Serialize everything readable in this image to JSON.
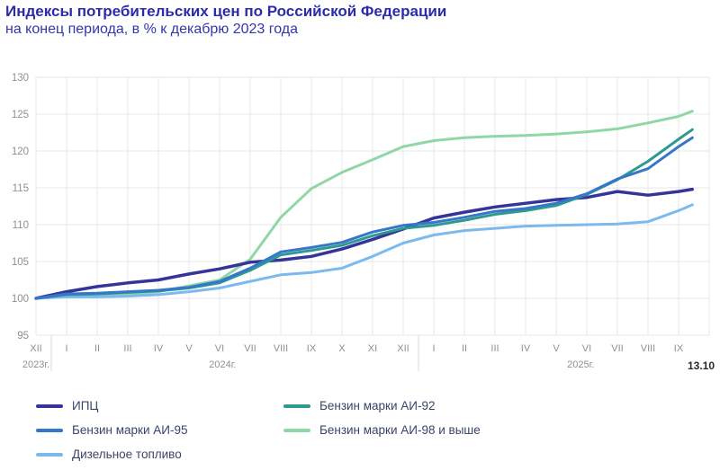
{
  "header": {
    "title": "Индексы потребительских цен по Российской Федерации",
    "subtitle": "на конец периода, в % к декабрю 2023 года"
  },
  "annotation": {
    "date_label": "13.10"
  },
  "colors": {
    "title": "#2c2caa",
    "grid": "#e7e7e7",
    "tick_text": "#8f8f8f",
    "date_label_text": "#2b2b2b"
  },
  "chart_data": {
    "type": "line",
    "title": "Индексы потребительских цен по Российской Федерации",
    "subtitle": "на конец периода, в % к декабрю 2023 года",
    "ylim": [
      95,
      130
    ],
    "y_ticks": [
      95,
      100,
      105,
      110,
      115,
      120,
      125,
      130
    ],
    "grid": true,
    "legend_position": "bottom",
    "x_tick_labels": [
      "XII",
      "I",
      "II",
      "III",
      "IV",
      "V",
      "VI",
      "VII",
      "VIII",
      "IX",
      "X",
      "XI",
      "XII",
      "I",
      "II",
      "III",
      "IV",
      "V",
      "VI",
      "VII",
      "VIII",
      "IX"
    ],
    "year_labels": [
      {
        "label": "2023г.",
        "month_index": 0
      },
      {
        "label": "2024г.",
        "month_index": 6.1
      },
      {
        "label": "2025г.",
        "month_index": 17.8
      }
    ],
    "year_separator_indices": [
      0.5,
      12.5
    ],
    "last_point_month_index": 21.45,
    "last_point_note": "13.10",
    "series": [
      {
        "name": "ИПЦ",
        "color": "#34349a",
        "width": 3.5,
        "values": [
          100,
          100.9,
          101.6,
          102.1,
          102.5,
          103.3,
          104.0,
          104.9,
          105.2,
          105.7,
          106.7,
          108.0,
          109.4,
          110.9,
          111.7,
          112.4,
          112.9,
          113.4,
          113.7,
          114.5,
          114.0,
          114.5,
          114.8
        ]
      },
      {
        "name": "Бензин марки АИ-95",
        "color": "#3577c9",
        "width": 3,
        "values": [
          100,
          100.6,
          100.7,
          100.9,
          101.1,
          101.5,
          102.3,
          104.1,
          106.3,
          106.9,
          107.6,
          109.0,
          109.9,
          110.3,
          111.0,
          111.8,
          112.2,
          112.9,
          114.2,
          116.2,
          117.6,
          120.6,
          121.8
        ]
      },
      {
        "name": "Дизельное топливо",
        "color": "#7cb9ec",
        "width": 3,
        "values": [
          100,
          100.2,
          100.2,
          100.3,
          100.5,
          100.9,
          101.4,
          102.3,
          103.2,
          103.5,
          104.1,
          105.7,
          107.5,
          108.6,
          109.2,
          109.5,
          109.8,
          109.9,
          110.0,
          110.1,
          110.4,
          111.9,
          112.7
        ]
      },
      {
        "name": "Бензин марки АИ-92",
        "color": "#2e9a8f",
        "width": 3,
        "values": [
          100,
          100.5,
          100.6,
          100.8,
          101.0,
          101.4,
          102.1,
          103.8,
          105.9,
          106.5,
          107.2,
          108.5,
          109.5,
          109.9,
          110.6,
          111.4,
          111.9,
          112.6,
          114.1,
          116.1,
          118.6,
          121.6,
          122.9
        ]
      },
      {
        "name": "Бензин марки АИ-98 и выше",
        "color": "#8fd7a7",
        "width": 3,
        "values": [
          100,
          100.3,
          100.4,
          100.6,
          100.9,
          101.7,
          102.5,
          105.3,
          111.0,
          114.9,
          117.1,
          118.8,
          120.6,
          121.4,
          121.8,
          122.0,
          122.1,
          122.3,
          122.6,
          123.0,
          123.8,
          124.7,
          125.4
        ]
      }
    ],
    "draw_order": [
      4,
      2,
      0,
      3,
      1
    ]
  },
  "legend": {
    "columns": [
      [
        {
          "label": "ИПЦ",
          "series_index": 0
        },
        {
          "label": "Бензин марки АИ-95",
          "series_index": 1
        },
        {
          "label": "Дизельное топливо",
          "series_index": 2
        }
      ],
      [
        {
          "label": "Бензин марки АИ-92",
          "series_index": 3
        },
        {
          "label": "Бензин марки АИ-98 и выше",
          "series_index": 4
        }
      ]
    ]
  }
}
